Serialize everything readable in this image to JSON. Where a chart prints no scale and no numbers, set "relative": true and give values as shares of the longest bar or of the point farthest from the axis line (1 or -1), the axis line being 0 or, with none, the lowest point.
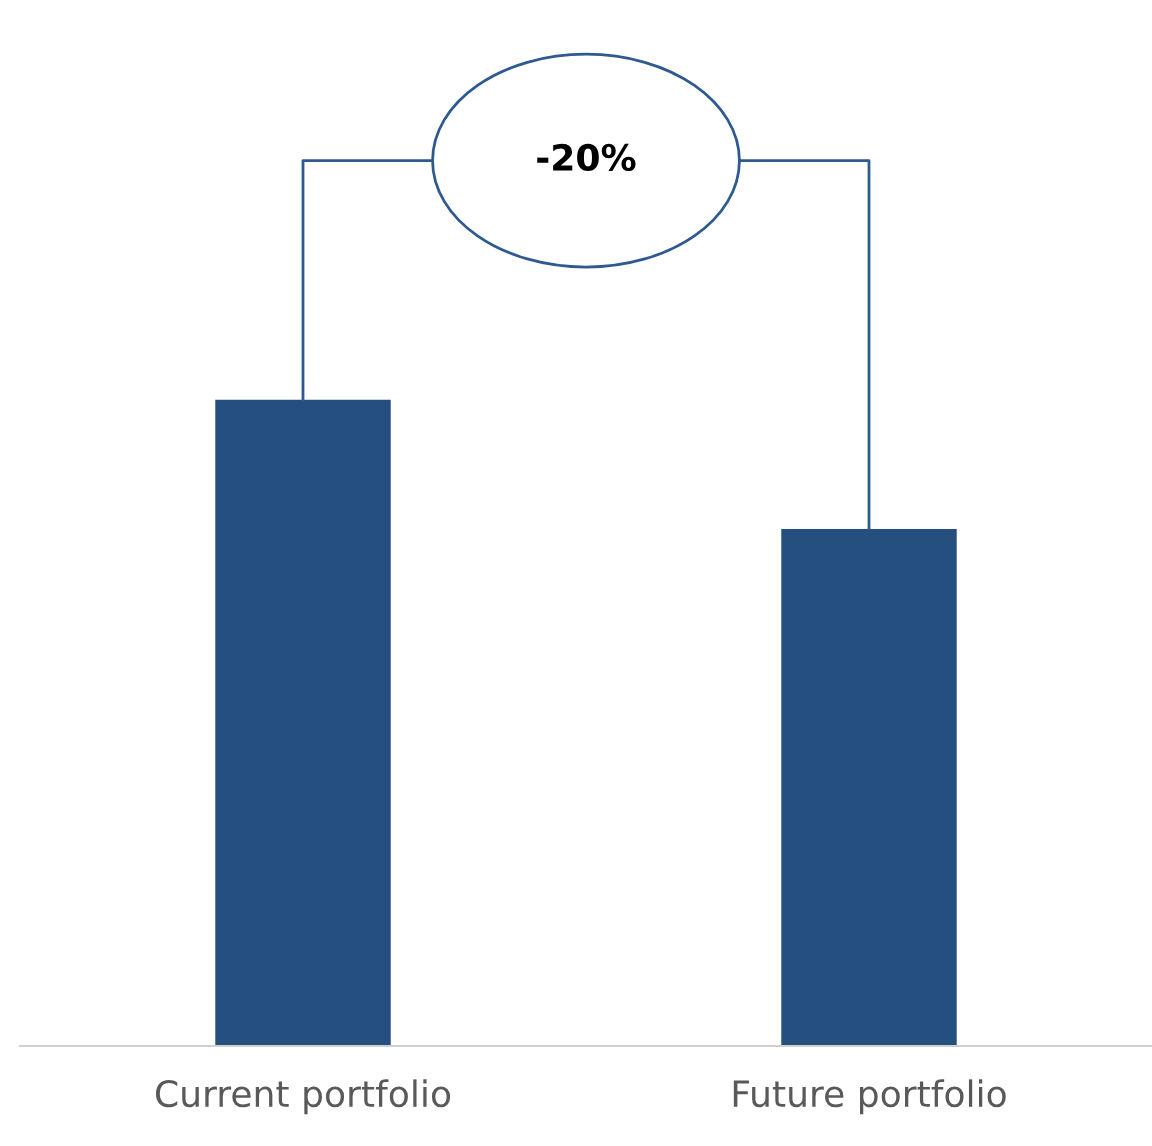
{
  "chart_data": {
    "type": "bar",
    "relative": true,
    "categories": [
      "Current portfolio",
      "Future portfolio"
    ],
    "values": [
      1,
      0.8
    ],
    "color": "#254f7f",
    "annotations": [
      "-20%"
    ],
    "grid": false,
    "legend": false
  }
}
